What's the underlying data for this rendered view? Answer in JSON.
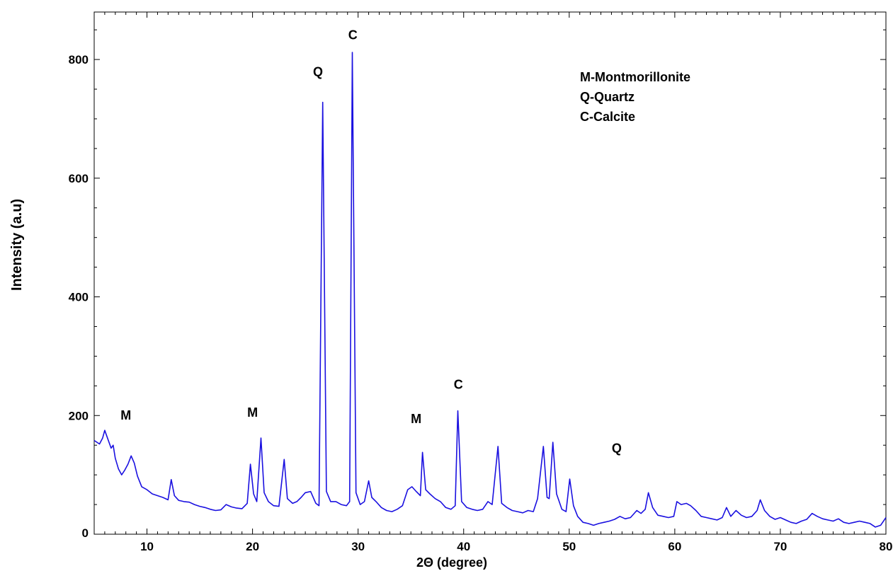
{
  "chart_data": {
    "type": "line",
    "xlabel": "2Θ (degree)",
    "ylabel": "Intensity (a.u)",
    "xlim": [
      5,
      80
    ],
    "ylim": [
      0,
      880
    ],
    "x_ticks": [
      10,
      20,
      30,
      40,
      50,
      60,
      70,
      80
    ],
    "x_tick_labels": [
      "10",
      "20",
      "30",
      "40",
      "50",
      "60",
      "70",
      "80"
    ],
    "y_ticks": [
      0,
      200,
      400,
      600,
      800
    ],
    "y_tick_labels": [
      "0",
      "200",
      "400",
      "600",
      "800"
    ],
    "grid": false,
    "legend_position": "top-right",
    "legend": [
      "M-Montmorillonite",
      "Q-Quartz",
      "C-Calcite"
    ],
    "series_color": "#1a10e0",
    "annotations": [
      {
        "text": "M",
        "x": 8.0,
        "y": 193
      },
      {
        "text": "M",
        "x": 20.0,
        "y": 198
      },
      {
        "text": "Q",
        "x": 26.2,
        "y": 772
      },
      {
        "text": "C",
        "x": 29.5,
        "y": 834
      },
      {
        "text": "M",
        "x": 35.5,
        "y": 187
      },
      {
        "text": "C",
        "x": 39.5,
        "y": 245
      },
      {
        "text": "Q",
        "x": 54.5,
        "y": 138
      }
    ],
    "series": [
      {
        "points": [
          [
            5.0,
            158
          ],
          [
            5.5,
            152
          ],
          [
            5.8,
            162
          ],
          [
            6.0,
            175
          ],
          [
            6.3,
            160
          ],
          [
            6.6,
            145
          ],
          [
            6.8,
            150
          ],
          [
            7.0,
            128
          ],
          [
            7.3,
            110
          ],
          [
            7.6,
            100
          ],
          [
            7.9,
            108
          ],
          [
            8.2,
            118
          ],
          [
            8.5,
            132
          ],
          [
            8.8,
            120
          ],
          [
            9.1,
            98
          ],
          [
            9.5,
            80
          ],
          [
            10,
            75
          ],
          [
            10.5,
            68
          ],
          [
            11,
            65
          ],
          [
            11.5,
            62
          ],
          [
            12.0,
            58
          ],
          [
            12.3,
            92
          ],
          [
            12.6,
            65
          ],
          [
            13,
            57
          ],
          [
            13.5,
            55
          ],
          [
            14,
            54
          ],
          [
            14.5,
            50
          ],
          [
            15,
            47
          ],
          [
            15.5,
            45
          ],
          [
            16,
            42
          ],
          [
            16.5,
            40
          ],
          [
            17,
            41
          ],
          [
            17.5,
            50
          ],
          [
            18,
            46
          ],
          [
            18.5,
            44
          ],
          [
            19,
            43
          ],
          [
            19.5,
            52
          ],
          [
            19.8,
            118
          ],
          [
            20.1,
            68
          ],
          [
            20.4,
            55
          ],
          [
            20.8,
            162
          ],
          [
            21.1,
            70
          ],
          [
            21.5,
            55
          ],
          [
            22,
            48
          ],
          [
            22.5,
            47
          ],
          [
            23.0,
            126
          ],
          [
            23.3,
            60
          ],
          [
            23.8,
            52
          ],
          [
            24.2,
            55
          ],
          [
            24.6,
            62
          ],
          [
            25.0,
            70
          ],
          [
            25.5,
            72
          ],
          [
            26.0,
            52
          ],
          [
            26.3,
            48
          ],
          [
            26.65,
            728
          ],
          [
            27.0,
            72
          ],
          [
            27.4,
            55
          ],
          [
            27.9,
            55
          ],
          [
            28.4,
            50
          ],
          [
            28.9,
            48
          ],
          [
            29.2,
            55
          ],
          [
            29.45,
            812
          ],
          [
            29.8,
            70
          ],
          [
            30.2,
            50
          ],
          [
            30.6,
            55
          ],
          [
            31.0,
            90
          ],
          [
            31.3,
            62
          ],
          [
            31.7,
            55
          ],
          [
            32.2,
            45
          ],
          [
            32.7,
            40
          ],
          [
            33.2,
            38
          ],
          [
            33.7,
            42
          ],
          [
            34.2,
            48
          ],
          [
            34.7,
            75
          ],
          [
            35.1,
            80
          ],
          [
            35.5,
            72
          ],
          [
            35.9,
            65
          ],
          [
            36.1,
            138
          ],
          [
            36.4,
            75
          ],
          [
            36.8,
            68
          ],
          [
            37.3,
            60
          ],
          [
            37.8,
            55
          ],
          [
            38.3,
            45
          ],
          [
            38.8,
            42
          ],
          [
            39.2,
            48
          ],
          [
            39.45,
            208
          ],
          [
            39.8,
            55
          ],
          [
            40.3,
            45
          ],
          [
            40.8,
            42
          ],
          [
            41.3,
            40
          ],
          [
            41.8,
            42
          ],
          [
            42.3,
            55
          ],
          [
            42.7,
            50
          ],
          [
            43.25,
            148
          ],
          [
            43.6,
            52
          ],
          [
            44.1,
            45
          ],
          [
            44.6,
            40
          ],
          [
            45.1,
            38
          ],
          [
            45.6,
            36
          ],
          [
            46.1,
            40
          ],
          [
            46.6,
            38
          ],
          [
            47.0,
            60
          ],
          [
            47.55,
            148
          ],
          [
            47.9,
            62
          ],
          [
            48.1,
            60
          ],
          [
            48.45,
            155
          ],
          [
            48.8,
            68
          ],
          [
            49.3,
            42
          ],
          [
            49.7,
            38
          ],
          [
            50.05,
            93
          ],
          [
            50.4,
            48
          ],
          [
            50.8,
            30
          ],
          [
            51.3,
            20
          ],
          [
            51.8,
            18
          ],
          [
            52.3,
            15
          ],
          [
            52.8,
            18
          ],
          [
            53.3,
            20
          ],
          [
            53.8,
            22
          ],
          [
            54.3,
            25
          ],
          [
            54.8,
            30
          ],
          [
            55.3,
            26
          ],
          [
            55.8,
            28
          ],
          [
            56.4,
            40
          ],
          [
            56.8,
            35
          ],
          [
            57.2,
            42
          ],
          [
            57.5,
            70
          ],
          [
            57.9,
            45
          ],
          [
            58.4,
            32
          ],
          [
            58.9,
            30
          ],
          [
            59.4,
            28
          ],
          [
            59.9,
            30
          ],
          [
            60.2,
            55
          ],
          [
            60.6,
            50
          ],
          [
            61.1,
            52
          ],
          [
            61.5,
            48
          ],
          [
            62.0,
            40
          ],
          [
            62.5,
            30
          ],
          [
            63.0,
            28
          ],
          [
            63.5,
            26
          ],
          [
            64.0,
            24
          ],
          [
            64.5,
            28
          ],
          [
            64.9,
            45
          ],
          [
            65.3,
            30
          ],
          [
            65.8,
            40
          ],
          [
            66.3,
            32
          ],
          [
            66.8,
            28
          ],
          [
            67.3,
            30
          ],
          [
            67.8,
            40
          ],
          [
            68.1,
            58
          ],
          [
            68.5,
            40
          ],
          [
            69.0,
            30
          ],
          [
            69.5,
            25
          ],
          [
            70.0,
            28
          ],
          [
            70.5,
            24
          ],
          [
            71.0,
            20
          ],
          [
            71.5,
            18
          ],
          [
            72.0,
            22
          ],
          [
            72.5,
            25
          ],
          [
            73.0,
            35
          ],
          [
            73.5,
            30
          ],
          [
            74.0,
            26
          ],
          [
            74.5,
            24
          ],
          [
            75.0,
            22
          ],
          [
            75.5,
            26
          ],
          [
            76.0,
            20
          ],
          [
            76.5,
            18
          ],
          [
            77.0,
            20
          ],
          [
            77.5,
            22
          ],
          [
            78.0,
            20
          ],
          [
            78.5,
            18
          ],
          [
            79.0,
            12
          ],
          [
            79.5,
            15
          ],
          [
            80.0,
            28
          ]
        ]
      }
    ]
  }
}
